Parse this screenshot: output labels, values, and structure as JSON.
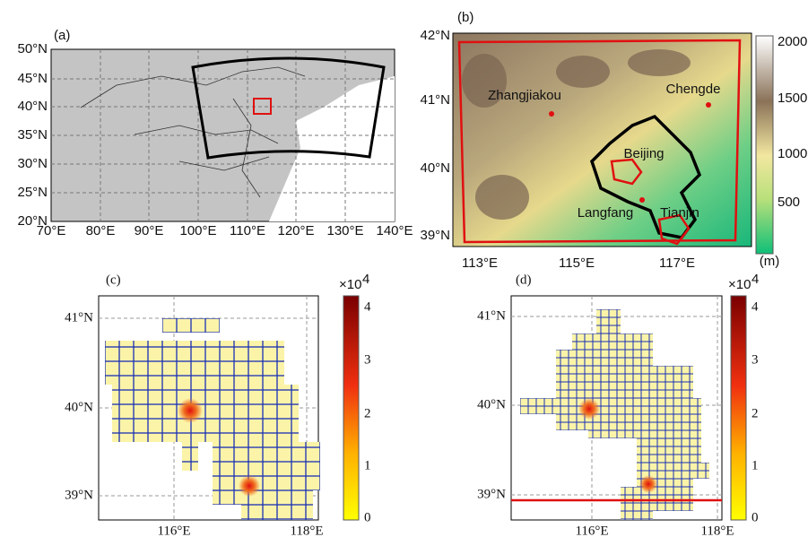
{
  "panels": [
    {
      "label": "(a)",
      "yticks": [
        "50°N",
        "45°N",
        "40°N",
        "35°N",
        "30°N",
        "25°N",
        "20°N"
      ],
      "xticks": [
        "70°E",
        "80°E",
        "90°E",
        "100°E",
        "110°E",
        "120°E",
        "130°E",
        "140°E"
      ]
    },
    {
      "label": "(b)",
      "yticks": [
        "42°N",
        "41°N",
        "40°N",
        "39°N"
      ],
      "xticks": [
        "113°E",
        "115°E",
        "117°E"
      ],
      "places": [
        "Zhangjiakou",
        "Chengde",
        "Beijing",
        "Langfang",
        "Tianjin"
      ],
      "colorbar": {
        "ticks": [
          "2000",
          "1500",
          "1000",
          "500"
        ],
        "unit": "(m)"
      }
    },
    {
      "label": "(c)",
      "yticks": [
        "41°N",
        "40°N",
        "39°N"
      ],
      "xticks": [
        "116°E",
        "118°E"
      ],
      "colorbar": {
        "ticks": [
          "4",
          "3",
          "2",
          "1",
          "0"
        ],
        "base": "×10",
        "exponent": "4"
      }
    },
    {
      "label": "(d)",
      "yticks": [
        "41°N",
        "40°N",
        "39°N"
      ],
      "xticks": [
        "116°E",
        "118°E"
      ],
      "colorbar": {
        "ticks": [
          "4",
          "3",
          "2",
          "1",
          "0"
        ],
        "base": "×10",
        "exponent": "4"
      }
    }
  ]
}
